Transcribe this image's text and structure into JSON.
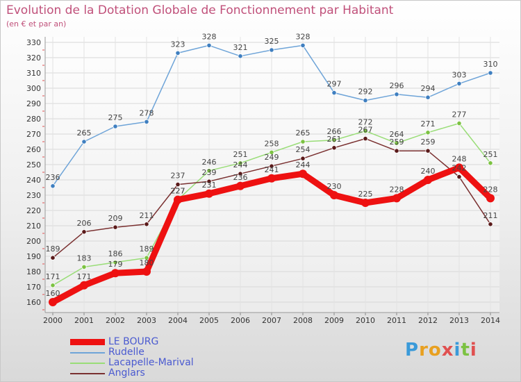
{
  "title": "Evolution de la Dotation Globale de Fonctionnement par Habitant",
  "subtitle": "(en € et par an)",
  "logo": {
    "text": "Proxiti",
    "letters": [
      "P",
      "r",
      "o",
      "x",
      "i",
      "t",
      "i"
    ],
    "colors": [
      "#3a9ad9",
      "#e8a020",
      "#e8a020",
      "#e05050",
      "#3a9ad9",
      "#7cc242",
      "#e05050"
    ]
  },
  "colors": {
    "title": "#c0507a",
    "axis_text": "#333333",
    "grid": "#dddddd",
    "label": "#444444"
  },
  "chart_data": {
    "type": "line",
    "title": "Evolution de la Dotation Globale de Fonctionnement par Habitant",
    "subtitle": "(en € et par an)",
    "xlabel": "",
    "ylabel": "",
    "ylim": [
      150,
      330
    ],
    "y_ticks": [
      160,
      170,
      180,
      190,
      200,
      210,
      220,
      230,
      240,
      250,
      260,
      270,
      280,
      290,
      300,
      310,
      320,
      330
    ],
    "categories": [
      "2000",
      "2001",
      "2002",
      "2003",
      "2004",
      "2005",
      "2006",
      "2007",
      "2008",
      "2009",
      "2010",
      "2011",
      "2012",
      "2013",
      "2014"
    ],
    "grid": true,
    "legend_position": "bottom-left",
    "series": [
      {
        "name": "Rudelle",
        "color": "#6ea4d8",
        "marker": "#3f7fc0",
        "width": "thin",
        "values": [
          236,
          265,
          275,
          278,
          323,
          328,
          321,
          325,
          328,
          297,
          292,
          296,
          294,
          303,
          310
        ]
      },
      {
        "name": "Lacapelle-Marival",
        "color": "#99dd77",
        "marker": "#7cc242",
        "width": "thin",
        "values": [
          171,
          183,
          186,
          189,
          227,
          246,
          251,
          258,
          265,
          266,
          272,
          264,
          271,
          277,
          251
        ]
      },
      {
        "name": "Anglars",
        "color": "#7a3030",
        "marker": "#5a1a1a",
        "width": "thin",
        "values": [
          189,
          206,
          209,
          211,
          237,
          239,
          244,
          249,
          254,
          261,
          267,
          259,
          259,
          242,
          211
        ]
      },
      {
        "name": "LE BOURG",
        "color": "#ee1111",
        "marker": "#ee1111",
        "width": "thick",
        "values": [
          160,
          171,
          179,
          180,
          227,
          231,
          236,
          241,
          244,
          230,
          225,
          228,
          240,
          248,
          228
        ]
      }
    ],
    "legend": [
      "LE BOURG",
      "Rudelle",
      "Lacapelle-Marival",
      "Anglars"
    ]
  }
}
